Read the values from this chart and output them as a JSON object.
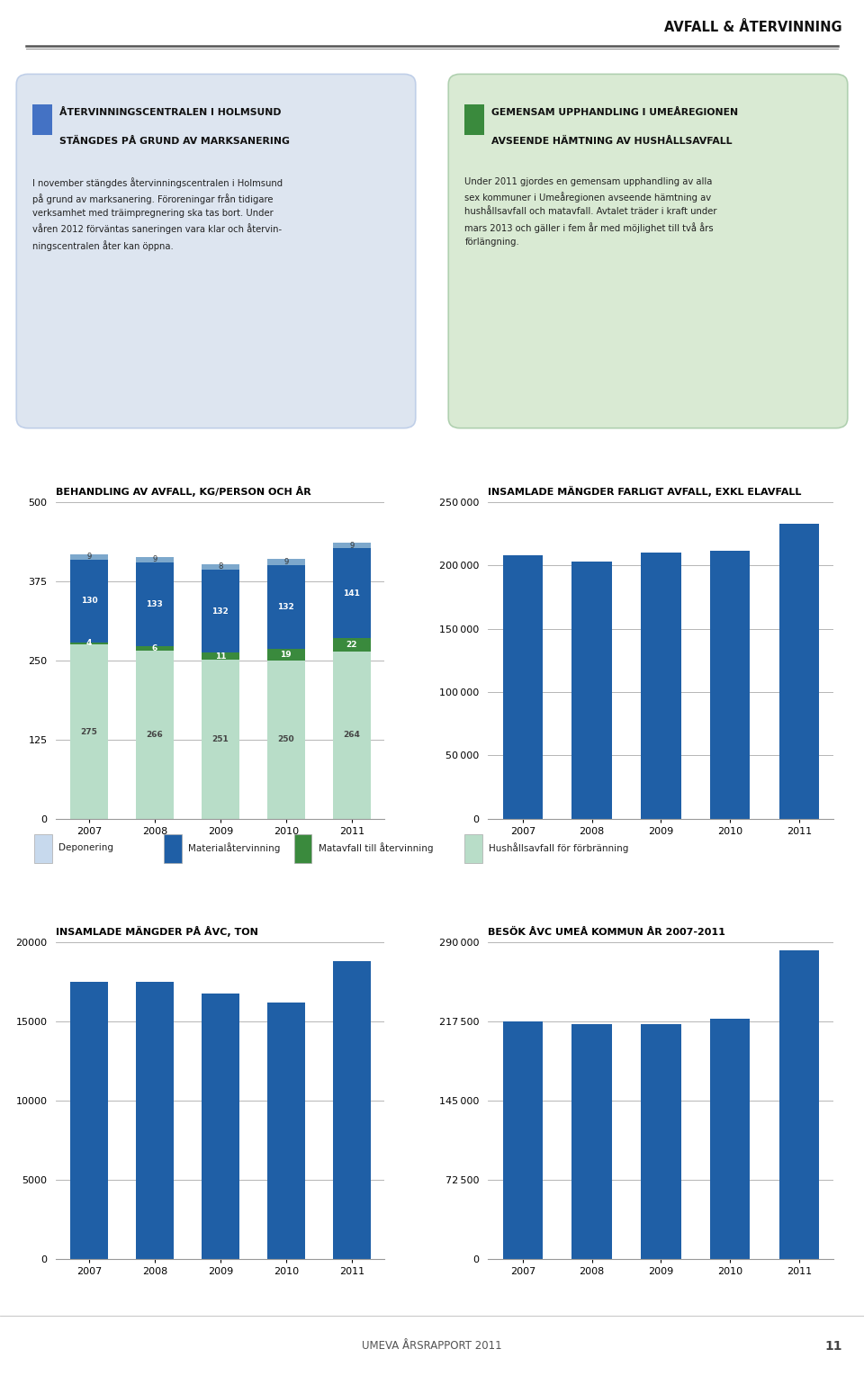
{
  "page_title": "AVFALL & ÅTERVINNING",
  "page_number": "11",
  "footer_text": "UMEVA ÅRSRAPPORT 2011",
  "background_color": "#ffffff",
  "box1_bg": "#dde5f0",
  "box1_border_color": "#c0cfe8",
  "box1_title_line1": "ÅTERVINNINGSCENTRALEN I HOLMSUND",
  "box1_title_line2": "STÄNGDES PÅ GRUND AV MARKSANERING",
  "box1_body": "I november stängdes återvinningscentralen i Holmsund\npå grund av marksanering. Föroreningar från tidigare\nverksamhet med träimpregnering ska tas bort. Under\nvåren 2012 förväntas saneringen vara klar och återvin-\nningscentralen åter kan öppna.",
  "box1_icon_color": "#4472c4",
  "box2_bg": "#d9ead3",
  "box2_border_color": "#b0d0b0",
  "box2_title_line1": "GEMENSAM UPPHANDLING I UMEÅREGIONEN",
  "box2_title_line2": "AVSEENDE HÄMTNING AV HUSHÅLLSAVFALL",
  "box2_body": "Under 2011 gjordes en gemensam upphandling av alla\nsex kommuner i Umeåregionen avseende hämtning av\nhushållsavfall och matavfall. Avtalet träder i kraft under\nmars 2013 och gäller i fem år med möjlighet till två års\nförlängning.",
  "box2_icon_color": "#3a8a3d",
  "chart1_title": "BEHANDLING AV AVFALL, KG/PERSON OCH ÅR",
  "chart1_years": [
    2007,
    2008,
    2009,
    2010,
    2011
  ],
  "chart1_materialatervinning": [
    130,
    133,
    132,
    132,
    141
  ],
  "chart1_matavfall": [
    4,
    6,
    11,
    19,
    22
  ],
  "chart1_hushallsavfall": [
    275,
    266,
    251,
    250,
    264
  ],
  "chart1_elavfall": [
    9,
    9,
    8,
    9,
    9
  ],
  "chart1_ylim": [
    0,
    500
  ],
  "chart1_yticks": [
    0,
    125,
    250,
    375,
    500
  ],
  "chart1_color_deponering": "#c7d9ed",
  "chart1_color_materialatervinning": "#1f5fa6",
  "chart1_color_matavfall": "#3a8a3d",
  "chart1_color_hushallsavfall": "#b8ddc8",
  "chart1_color_elavfall": "#7da8cc",
  "chart2_title": "INSAMLADE MÄNGDER FARLIGT AVFALL, EXKL ELAVFALL",
  "chart2_years": [
    2007,
    2008,
    2009,
    2010,
    2011
  ],
  "chart2_values": [
    208000,
    203000,
    210000,
    212000,
    233000
  ],
  "chart2_ylim": [
    0,
    250000
  ],
  "chart2_yticks": [
    0,
    50000,
    100000,
    150000,
    200000,
    250000
  ],
  "chart2_color": "#1f5fa6",
  "legend_deponering": "Deponering",
  "legend_materialatervinning": "Materialåtervinning",
  "legend_matavfall": "Matavfall till återvinning",
  "legend_hushallsavfall": "Hushållsavfall för förbränning",
  "chart3_title": "INSAMLADE MÄNGDER PÅ ÅVC, TON",
  "chart3_years": [
    2007,
    2008,
    2009,
    2010,
    2011
  ],
  "chart3_values": [
    17500,
    17500,
    16800,
    16200,
    18800
  ],
  "chart3_ylim": [
    0,
    20000
  ],
  "chart3_yticks": [
    0,
    5000,
    10000,
    15000,
    20000
  ],
  "chart3_color": "#1f5fa6",
  "chart4_title": "BESÖK ÅVC UMEÅ KOMMUN ÅR 2007-2011",
  "chart4_years": [
    2007,
    2008,
    2009,
    2010,
    2011
  ],
  "chart4_values": [
    218000,
    215000,
    215000,
    220000,
    283000
  ],
  "chart4_ylim": [
    0,
    290000
  ],
  "chart4_yticks": [
    0,
    72500,
    145000,
    217500,
    290000
  ],
  "chart4_color": "#1f5fa6"
}
